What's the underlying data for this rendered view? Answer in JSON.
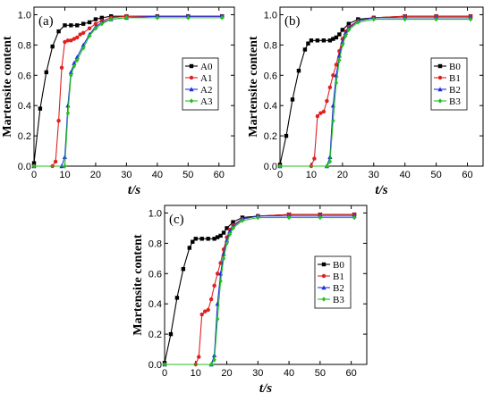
{
  "chart_data": [
    {
      "type": "line",
      "panel_label": "(a)",
      "xlabel_var": "t",
      "xlabel_unit": "/s",
      "ylabel": "Martensite content",
      "xlim": [
        0,
        65
      ],
      "ylim": [
        0,
        1.05
      ],
      "xticks": [
        "0",
        "10",
        "20",
        "30",
        "40",
        "50",
        "60"
      ],
      "yticks": [
        "0.0",
        "0.2",
        "0.4",
        "0.6",
        "0.8",
        "1.0"
      ],
      "legend_position": "right-middle",
      "series": [
        {
          "name": "A0",
          "color": "#000000",
          "marker": "square",
          "x": [
            0,
            2,
            4,
            6,
            8,
            10,
            12,
            14,
            16,
            18,
            20,
            22,
            25,
            30,
            40,
            50,
            61
          ],
          "y": [
            0.02,
            0.38,
            0.62,
            0.79,
            0.89,
            0.93,
            0.93,
            0.93,
            0.94,
            0.95,
            0.97,
            0.98,
            0.99,
            0.99,
            0.99,
            0.99,
            0.99
          ]
        },
        {
          "name": "A1",
          "color": "#e02020",
          "marker": "circle",
          "x": [
            0,
            6,
            7,
            8,
            9,
            10,
            11,
            12,
            13,
            14,
            15,
            16,
            18,
            20,
            22,
            25,
            30,
            40,
            50,
            61
          ],
          "y": [
            0,
            0,
            0.03,
            0.3,
            0.65,
            0.82,
            0.83,
            0.83,
            0.84,
            0.85,
            0.87,
            0.88,
            0.91,
            0.94,
            0.96,
            0.98,
            0.99,
            0.99,
            0.99,
            0.99
          ]
        },
        {
          "name": "A2",
          "color": "#2030e0",
          "marker": "triangle",
          "x": [
            0,
            9,
            10,
            11,
            12,
            13,
            14,
            16,
            18,
            20,
            22,
            25,
            30,
            40,
            50,
            61
          ],
          "y": [
            0,
            0,
            0.06,
            0.4,
            0.62,
            0.68,
            0.72,
            0.8,
            0.87,
            0.92,
            0.95,
            0.97,
            0.98,
            0.99,
            0.99,
            0.99
          ]
        },
        {
          "name": "A3",
          "color": "#20c020",
          "marker": "diamond",
          "x": [
            0,
            10,
            11,
            12,
            13,
            14,
            16,
            18,
            20,
            22,
            25,
            30,
            40,
            50,
            61
          ],
          "y": [
            0,
            0,
            0.35,
            0.6,
            0.66,
            0.7,
            0.78,
            0.86,
            0.91,
            0.94,
            0.97,
            0.98,
            0.98,
            0.98,
            0.98
          ]
        }
      ]
    },
    {
      "type": "line",
      "panel_label": "(b)",
      "xlabel_var": "t",
      "xlabel_unit": "/s",
      "ylabel": "Martensite content",
      "xlim": [
        0,
        65
      ],
      "ylim": [
        0,
        1.05
      ],
      "xticks": [
        "0",
        "10",
        "20",
        "30",
        "40",
        "50",
        "60"
      ],
      "yticks": [
        "0.0",
        "0.2",
        "0.4",
        "0.6",
        "0.8",
        "1.0"
      ],
      "legend_position": "right-middle",
      "series": [
        {
          "name": "B0",
          "color": "#000000",
          "marker": "square",
          "x": [
            0,
            2,
            4,
            6,
            8,
            9,
            10,
            12,
            14,
            16,
            17,
            18,
            19,
            20,
            22,
            25,
            30,
            40,
            50,
            61
          ],
          "y": [
            0.01,
            0.2,
            0.44,
            0.63,
            0.77,
            0.81,
            0.83,
            0.83,
            0.83,
            0.83,
            0.84,
            0.85,
            0.87,
            0.9,
            0.94,
            0.97,
            0.98,
            0.99,
            0.99,
            0.99
          ]
        },
        {
          "name": "B1",
          "color": "#e02020",
          "marker": "circle",
          "x": [
            0,
            10,
            11,
            12,
            13,
            14,
            15,
            16,
            17,
            18,
            19,
            20,
            21,
            22,
            25,
            30,
            40,
            50,
            61
          ],
          "y": [
            0,
            0,
            0.05,
            0.33,
            0.35,
            0.36,
            0.43,
            0.52,
            0.6,
            0.67,
            0.76,
            0.84,
            0.89,
            0.92,
            0.96,
            0.98,
            0.99,
            0.99,
            0.99
          ]
        },
        {
          "name": "B2",
          "color": "#2030e0",
          "marker": "triangle",
          "x": [
            0,
            15,
            16,
            17,
            18,
            19,
            20,
            21,
            22,
            25,
            30,
            40,
            50,
            61
          ],
          "y": [
            0,
            0,
            0.06,
            0.4,
            0.6,
            0.73,
            0.82,
            0.88,
            0.91,
            0.96,
            0.98,
            0.98,
            0.98,
            0.98
          ]
        },
        {
          "name": "B3",
          "color": "#20c020",
          "marker": "diamond",
          "x": [
            0,
            15,
            16,
            17,
            18,
            19,
            20,
            21,
            22,
            25,
            30,
            40,
            50,
            61
          ],
          "y": [
            0,
            0,
            0.03,
            0.3,
            0.55,
            0.7,
            0.8,
            0.86,
            0.9,
            0.95,
            0.97,
            0.97,
            0.97,
            0.97
          ]
        }
      ]
    },
    {
      "type": "line",
      "panel_label": "(c)",
      "xlabel_var": "t",
      "xlabel_unit": "/s",
      "ylabel": "Martensite content",
      "xlim": [
        0,
        65
      ],
      "ylim": [
        0,
        1.05
      ],
      "xticks": [
        "0",
        "10",
        "20",
        "30",
        "40",
        "50",
        "60"
      ],
      "yticks": [
        "0.0",
        "0.2",
        "0.4",
        "0.6",
        "0.8",
        "1.0"
      ],
      "legend_position": "right-middle",
      "series": [
        {
          "name": "B0",
          "color": "#000000",
          "marker": "square",
          "x": [
            0,
            2,
            4,
            6,
            8,
            9,
            10,
            12,
            14,
            16,
            17,
            18,
            19,
            20,
            22,
            25,
            30,
            40,
            50,
            61
          ],
          "y": [
            0.01,
            0.2,
            0.44,
            0.63,
            0.77,
            0.81,
            0.83,
            0.83,
            0.83,
            0.83,
            0.84,
            0.85,
            0.87,
            0.9,
            0.94,
            0.97,
            0.98,
            0.99,
            0.99,
            0.99
          ]
        },
        {
          "name": "B1",
          "color": "#e02020",
          "marker": "circle",
          "x": [
            0,
            10,
            11,
            12,
            13,
            14,
            15,
            16,
            17,
            18,
            19,
            20,
            21,
            22,
            25,
            30,
            40,
            50,
            61
          ],
          "y": [
            0,
            0,
            0.05,
            0.33,
            0.35,
            0.36,
            0.43,
            0.52,
            0.6,
            0.67,
            0.76,
            0.84,
            0.89,
            0.92,
            0.96,
            0.98,
            0.99,
            0.99,
            0.99
          ]
        },
        {
          "name": "B2",
          "color": "#2030e0",
          "marker": "triangle",
          "x": [
            0,
            15,
            16,
            17,
            18,
            19,
            20,
            21,
            22,
            25,
            30,
            40,
            50,
            61
          ],
          "y": [
            0,
            0,
            0.06,
            0.4,
            0.6,
            0.73,
            0.82,
            0.88,
            0.91,
            0.96,
            0.98,
            0.98,
            0.98,
            0.98
          ]
        },
        {
          "name": "B3",
          "color": "#20c020",
          "marker": "diamond",
          "x": [
            0,
            15,
            16,
            17,
            18,
            19,
            20,
            21,
            22,
            25,
            30,
            40,
            50,
            61
          ],
          "y": [
            0,
            0,
            0.03,
            0.3,
            0.55,
            0.7,
            0.8,
            0.86,
            0.9,
            0.95,
            0.97,
            0.97,
            0.97,
            0.97
          ]
        }
      ]
    }
  ]
}
